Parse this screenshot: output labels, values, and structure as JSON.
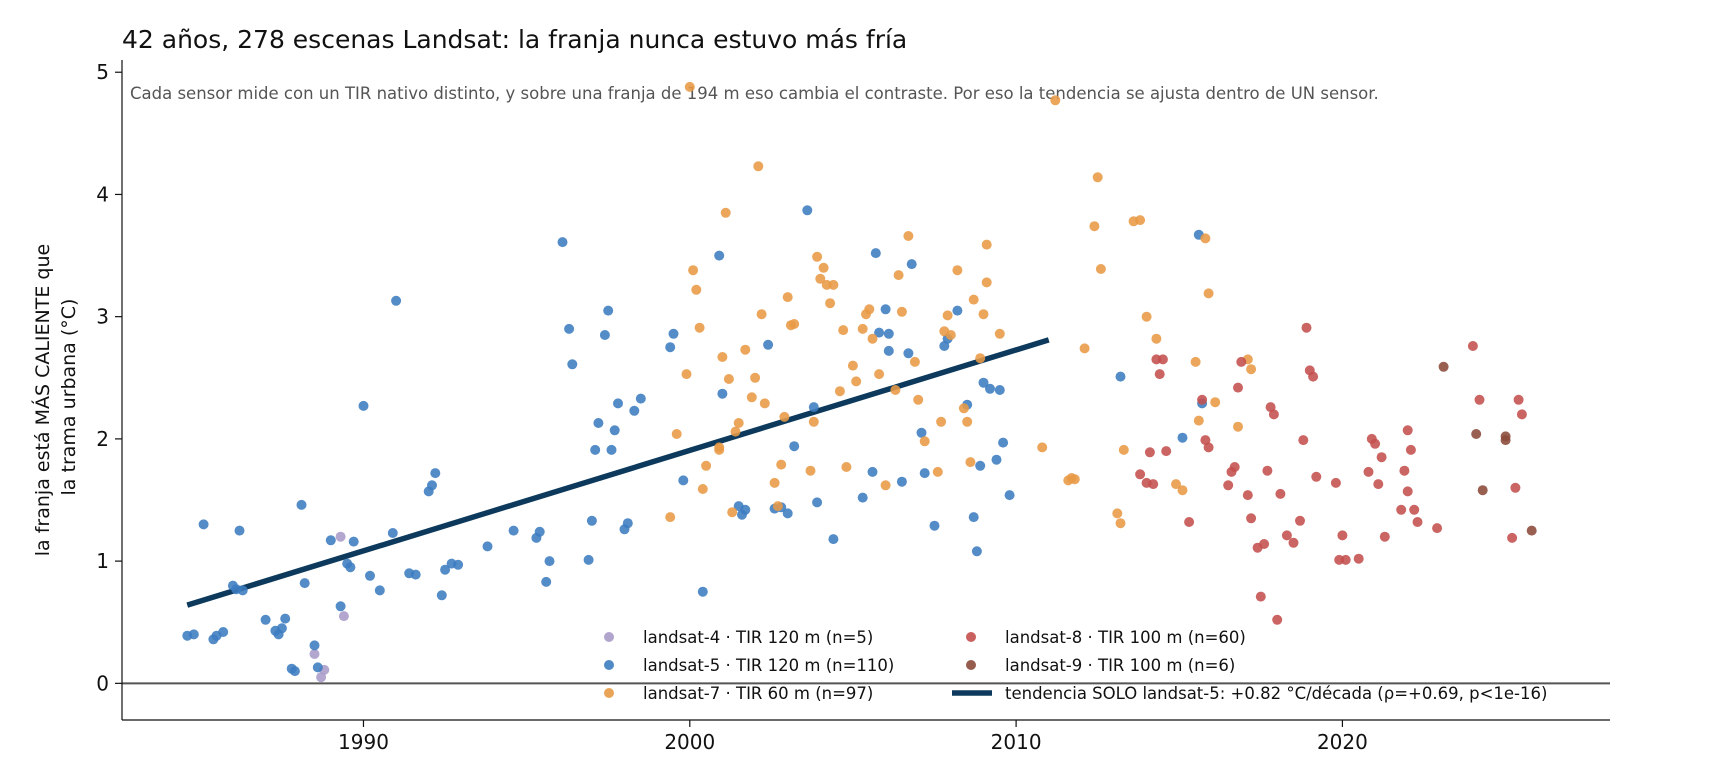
{
  "chart_data": {
    "type": "scatter",
    "title": "42 años, 278 escenas Landsat: la franja nunca estuvo más fría",
    "subtitle": "Cada sensor mide con un TIR nativo distinto, y sobre una franja de 194 m eso cambia el contraste. Por eso la tendencia se ajusta dentro de UN sensor.",
    "xlabel": "",
    "ylabel": "la franja está MÁS CALIENTE que\nla trama urbana (°C)",
    "xlim": [
      1982.6,
      2028.2
    ],
    "ylim": [
      -0.3,
      5.1
    ],
    "x_ticks": [
      1990,
      2000,
      2010,
      2020
    ],
    "y_ticks": [
      0,
      1,
      2,
      3,
      4,
      5
    ],
    "grid": false,
    "zero_line": true,
    "legend_position": "lower-center",
    "series": [
      {
        "name": "landsat-4 · TIR 120 m (n=5)",
        "color": "#a99bc9",
        "points": [
          [
            1988.5,
            0.24
          ],
          [
            1988.7,
            0.05
          ],
          [
            1988.8,
            0.11
          ],
          [
            1989.3,
            1.2
          ],
          [
            1989.4,
            0.55
          ]
        ]
      },
      {
        "name": "landsat-5 · TIR 120 m (n=110)",
        "color": "#3c7cc0",
        "points": [
          [
            1984.6,
            0.39
          ],
          [
            1984.8,
            0.4
          ],
          [
            1985.1,
            1.3
          ],
          [
            1985.4,
            0.36
          ],
          [
            1985.5,
            0.39
          ],
          [
            1985.7,
            0.42
          ],
          [
            1986.0,
            0.8
          ],
          [
            1986.1,
            0.77
          ],
          [
            1986.2,
            1.25
          ],
          [
            1986.3,
            0.76
          ],
          [
            1987.0,
            0.52
          ],
          [
            1987.3,
            0.43
          ],
          [
            1987.4,
            0.4
          ],
          [
            1987.5,
            0.45
          ],
          [
            1987.6,
            0.53
          ],
          [
            1987.8,
            0.12
          ],
          [
            1987.9,
            0.1
          ],
          [
            1988.1,
            1.46
          ],
          [
            1988.2,
            0.82
          ],
          [
            1988.5,
            0.31
          ],
          [
            1988.6,
            0.13
          ],
          [
            1989.0,
            1.17
          ],
          [
            1989.3,
            0.63
          ],
          [
            1989.5,
            0.98
          ],
          [
            1989.6,
            0.95
          ],
          [
            1989.7,
            1.16
          ],
          [
            1990.0,
            2.27
          ],
          [
            1990.2,
            0.88
          ],
          [
            1990.5,
            0.76
          ],
          [
            1990.9,
            1.23
          ],
          [
            1991.0,
            3.13
          ],
          [
            1991.4,
            0.9
          ],
          [
            1991.6,
            0.89
          ],
          [
            1992.0,
            1.57
          ],
          [
            1992.1,
            1.62
          ],
          [
            1992.2,
            1.72
          ],
          [
            1992.4,
            0.72
          ],
          [
            1992.5,
            0.93
          ],
          [
            1992.7,
            0.98
          ],
          [
            1992.9,
            0.97
          ],
          [
            1993.8,
            1.12
          ],
          [
            1995.3,
            1.19
          ],
          [
            1995.4,
            1.24
          ],
          [
            1995.6,
            0.83
          ],
          [
            1995.7,
            1.0
          ],
          [
            1996.1,
            3.61
          ],
          [
            1996.3,
            2.9
          ],
          [
            1996.4,
            2.61
          ],
          [
            1996.9,
            1.01
          ],
          [
            1997.0,
            1.33
          ],
          [
            1997.1,
            1.91
          ],
          [
            1997.2,
            2.13
          ],
          [
            1997.4,
            2.85
          ],
          [
            1997.5,
            3.05
          ],
          [
            1997.6,
            1.91
          ],
          [
            1997.7,
            2.07
          ],
          [
            1997.8,
            2.29
          ],
          [
            1998.0,
            1.26
          ],
          [
            1998.1,
            1.31
          ],
          [
            1998.3,
            2.23
          ],
          [
            1998.5,
            2.33
          ],
          [
            1999.4,
            2.75
          ],
          [
            1999.5,
            2.86
          ],
          [
            1999.8,
            1.66
          ],
          [
            2000.4,
            0.75
          ],
          [
            2000.9,
            3.5
          ],
          [
            2001.0,
            2.37
          ],
          [
            2001.5,
            1.45
          ],
          [
            2001.6,
            1.38
          ],
          [
            2001.7,
            1.42
          ],
          [
            2002.4,
            2.77
          ],
          [
            2002.6,
            1.43
          ],
          [
            2002.8,
            1.44
          ],
          [
            2003.0,
            1.39
          ],
          [
            2003.2,
            1.94
          ],
          [
            2003.6,
            3.87
          ],
          [
            2003.8,
            2.26
          ],
          [
            2003.9,
            1.48
          ],
          [
            2004.4,
            1.18
          ],
          [
            2005.3,
            1.52
          ],
          [
            2005.6,
            1.73
          ],
          [
            2005.7,
            3.52
          ],
          [
            2005.8,
            2.87
          ],
          [
            2006.0,
            3.06
          ],
          [
            2006.1,
            2.72
          ],
          [
            2006.1,
            2.86
          ],
          [
            2006.5,
            1.65
          ],
          [
            2006.7,
            2.7
          ],
          [
            2006.8,
            3.43
          ],
          [
            2007.1,
            2.05
          ],
          [
            2007.2,
            1.72
          ],
          [
            2007.5,
            1.29
          ],
          [
            2007.8,
            2.76
          ],
          [
            2007.9,
            2.82
          ],
          [
            2008.2,
            3.05
          ],
          [
            2008.5,
            2.28
          ],
          [
            2008.7,
            1.36
          ],
          [
            2008.8,
            1.08
          ],
          [
            2008.9,
            1.78
          ],
          [
            2009.0,
            2.46
          ],
          [
            2009.2,
            2.41
          ],
          [
            2009.4,
            1.83
          ],
          [
            2009.5,
            2.4
          ],
          [
            2009.6,
            1.97
          ],
          [
            2009.8,
            1.54
          ],
          [
            2013.2,
            2.51
          ],
          [
            2015.1,
            2.01
          ],
          [
            2015.6,
            3.67
          ],
          [
            2015.7,
            2.29
          ],
          [
            1994.6,
            1.25
          ]
        ]
      },
      {
        "name": "landsat-7 · TIR 60 m (n=97)",
        "color": "#e89a45",
        "points": [
          [
            1999.4,
            1.36
          ],
          [
            1999.6,
            2.04
          ],
          [
            1999.9,
            2.53
          ],
          [
            2000.0,
            4.88
          ],
          [
            2000.1,
            3.38
          ],
          [
            2000.2,
            3.22
          ],
          [
            2000.3,
            2.91
          ],
          [
            2000.4,
            1.59
          ],
          [
            2000.5,
            1.78
          ],
          [
            2000.9,
            1.93
          ],
          [
            2000.9,
            1.91
          ],
          [
            2001.0,
            2.67
          ],
          [
            2001.1,
            3.85
          ],
          [
            2001.2,
            2.49
          ],
          [
            2001.3,
            1.4
          ],
          [
            2001.4,
            2.06
          ],
          [
            2001.5,
            2.13
          ],
          [
            2001.7,
            2.73
          ],
          [
            2001.9,
            2.34
          ],
          [
            2002.0,
            2.5
          ],
          [
            2002.1,
            4.23
          ],
          [
            2002.2,
            3.02
          ],
          [
            2002.3,
            2.29
          ],
          [
            2002.6,
            1.64
          ],
          [
            2002.7,
            1.45
          ],
          [
            2002.8,
            1.79
          ],
          [
            2002.9,
            2.18
          ],
          [
            2003.0,
            3.16
          ],
          [
            2003.1,
            2.93
          ],
          [
            2003.2,
            2.94
          ],
          [
            2003.7,
            1.74
          ],
          [
            2003.8,
            2.14
          ],
          [
            2003.9,
            3.49
          ],
          [
            2004.0,
            3.31
          ],
          [
            2004.1,
            3.4
          ],
          [
            2004.2,
            3.26
          ],
          [
            2004.3,
            3.11
          ],
          [
            2004.4,
            3.26
          ],
          [
            2004.6,
            2.39
          ],
          [
            2004.7,
            2.89
          ],
          [
            2004.8,
            1.77
          ],
          [
            2005.0,
            2.6
          ],
          [
            2005.1,
            2.47
          ],
          [
            2005.3,
            2.9
          ],
          [
            2005.4,
            3.02
          ],
          [
            2005.5,
            3.06
          ],
          [
            2005.6,
            2.82
          ],
          [
            2005.8,
            2.53
          ],
          [
            2006.0,
            1.62
          ],
          [
            2006.3,
            2.4
          ],
          [
            2006.4,
            3.34
          ],
          [
            2006.5,
            3.04
          ],
          [
            2006.7,
            3.66
          ],
          [
            2006.9,
            2.63
          ],
          [
            2007.0,
            2.32
          ],
          [
            2007.2,
            1.98
          ],
          [
            2007.6,
            1.73
          ],
          [
            2007.7,
            2.14
          ],
          [
            2007.8,
            2.88
          ],
          [
            2007.9,
            3.01
          ],
          [
            2008.0,
            2.85
          ],
          [
            2008.2,
            3.38
          ],
          [
            2008.4,
            2.25
          ],
          [
            2008.5,
            2.14
          ],
          [
            2008.6,
            1.81
          ],
          [
            2008.7,
            3.14
          ],
          [
            2008.9,
            2.66
          ],
          [
            2009.0,
            3.02
          ],
          [
            2009.1,
            3.28
          ],
          [
            2009.1,
            3.59
          ],
          [
            2009.5,
            2.86
          ],
          [
            2010.8,
            1.93
          ],
          [
            2011.2,
            4.77
          ],
          [
            2011.6,
            1.66
          ],
          [
            2011.7,
            1.68
          ],
          [
            2011.8,
            1.67
          ],
          [
            2012.1,
            2.74
          ],
          [
            2012.4,
            3.74
          ],
          [
            2012.5,
            4.14
          ],
          [
            2012.6,
            3.39
          ],
          [
            2013.1,
            1.39
          ],
          [
            2013.2,
            1.31
          ],
          [
            2013.3,
            1.91
          ],
          [
            2013.6,
            3.78
          ],
          [
            2013.8,
            3.79
          ],
          [
            2014.0,
            3.0
          ],
          [
            2014.3,
            2.82
          ],
          [
            2014.9,
            1.63
          ],
          [
            2015.1,
            1.58
          ],
          [
            2015.5,
            2.63
          ],
          [
            2015.6,
            2.15
          ],
          [
            2015.8,
            3.64
          ],
          [
            2015.9,
            3.19
          ],
          [
            2016.1,
            2.3
          ],
          [
            2016.8,
            2.1
          ],
          [
            2017.1,
            2.65
          ],
          [
            2017.2,
            2.57
          ]
        ]
      },
      {
        "name": "landsat-8 · TIR 100 m (n=60)",
        "color": "#c4504d",
        "points": [
          [
            2013.8,
            1.71
          ],
          [
            2014.0,
            1.64
          ],
          [
            2014.1,
            1.89
          ],
          [
            2014.2,
            1.63
          ],
          [
            2014.3,
            2.65
          ],
          [
            2014.4,
            2.53
          ],
          [
            2014.5,
            2.65
          ],
          [
            2014.6,
            1.9
          ],
          [
            2015.3,
            1.32
          ],
          [
            2015.7,
            2.32
          ],
          [
            2015.8,
            1.99
          ],
          [
            2015.9,
            1.93
          ],
          [
            2016.5,
            1.62
          ],
          [
            2016.6,
            1.73
          ],
          [
            2016.7,
            1.77
          ],
          [
            2016.8,
            2.42
          ],
          [
            2016.9,
            2.63
          ],
          [
            2017.1,
            1.54
          ],
          [
            2017.2,
            1.35
          ],
          [
            2017.4,
            1.11
          ],
          [
            2017.5,
            0.71
          ],
          [
            2017.6,
            1.14
          ],
          [
            2017.7,
            1.74
          ],
          [
            2017.8,
            2.26
          ],
          [
            2017.9,
            2.2
          ],
          [
            2018.0,
            0.52
          ],
          [
            2018.1,
            1.55
          ],
          [
            2018.3,
            1.21
          ],
          [
            2018.5,
            1.15
          ],
          [
            2018.7,
            1.33
          ],
          [
            2018.8,
            1.99
          ],
          [
            2018.9,
            2.91
          ],
          [
            2019.0,
            2.56
          ],
          [
            2019.1,
            2.51
          ],
          [
            2019.2,
            1.69
          ],
          [
            2019.8,
            1.64
          ],
          [
            2019.9,
            1.01
          ],
          [
            2020.0,
            1.21
          ],
          [
            2020.1,
            1.01
          ],
          [
            2020.5,
            1.02
          ],
          [
            2020.8,
            1.73
          ],
          [
            2020.9,
            2.0
          ],
          [
            2021.0,
            1.96
          ],
          [
            2021.1,
            1.63
          ],
          [
            2021.2,
            1.85
          ],
          [
            2021.3,
            1.2
          ],
          [
            2021.8,
            1.42
          ],
          [
            2021.9,
            1.74
          ],
          [
            2022.0,
            2.07
          ],
          [
            2022.0,
            1.57
          ],
          [
            2022.1,
            1.91
          ],
          [
            2022.2,
            1.42
          ],
          [
            2022.3,
            1.32
          ],
          [
            2022.9,
            1.27
          ],
          [
            2024.0,
            2.76
          ],
          [
            2024.2,
            2.32
          ],
          [
            2025.2,
            1.19
          ],
          [
            2025.3,
            1.6
          ],
          [
            2025.4,
            2.32
          ],
          [
            2025.5,
            2.2
          ]
        ]
      },
      {
        "name": "landsat-9 · TIR 100 m (n=6)",
        "color": "#8b4a3a",
        "points": [
          [
            2023.1,
            2.59
          ],
          [
            2024.1,
            2.04
          ],
          [
            2024.3,
            1.58
          ],
          [
            2025.0,
            2.02
          ],
          [
            2025.0,
            1.99
          ],
          [
            2025.8,
            1.25
          ]
        ]
      }
    ],
    "trend": {
      "name": "tendencia SOLO landsat-5: +0.82 °C/década (ρ=+0.69, p<1e-16)",
      "color": "#0d3a5c",
      "x": [
        1984.6,
        2011.0
      ],
      "y": [
        0.64,
        2.81
      ]
    }
  }
}
